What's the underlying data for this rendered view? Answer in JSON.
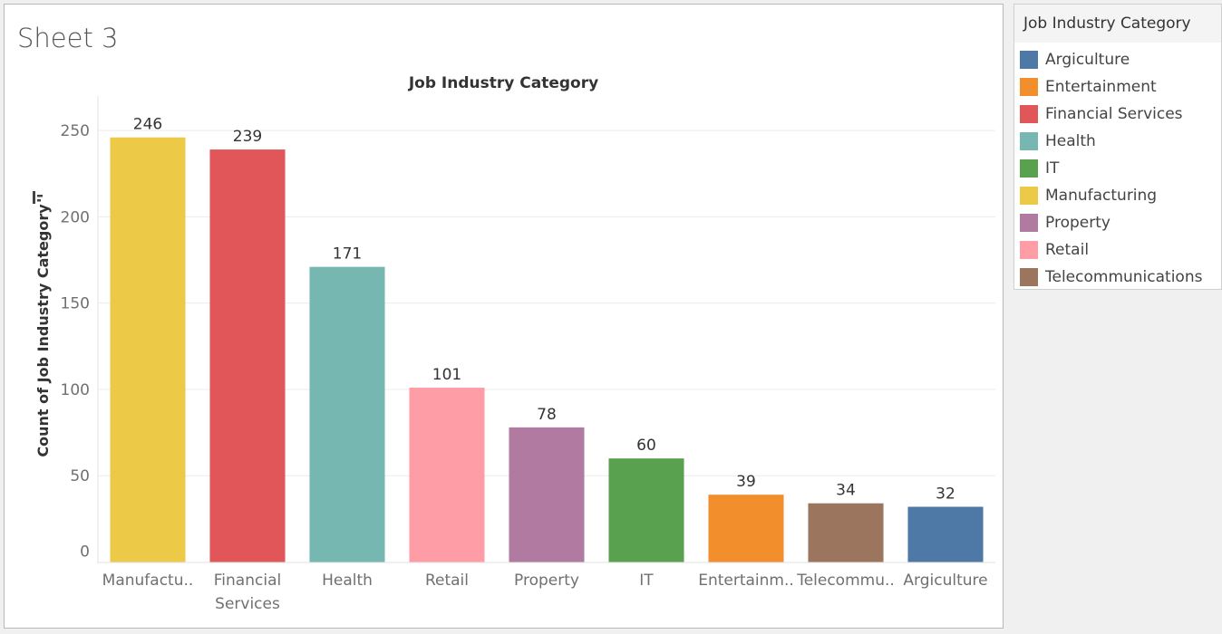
{
  "sheet": {
    "title": "Sheet 3"
  },
  "legend": {
    "title": "Job Industry Category",
    "items": [
      {
        "label": "Argiculture",
        "color": "#4e79a7"
      },
      {
        "label": "Entertainment",
        "color": "#f28e2b"
      },
      {
        "label": "Financial Services",
        "color": "#e15759"
      },
      {
        "label": "Health",
        "color": "#76b7b2"
      },
      {
        "label": "IT",
        "color": "#59a14f"
      },
      {
        "label": "Manufacturing",
        "color": "#edc948"
      },
      {
        "label": "Property",
        "color": "#b07aa1"
      },
      {
        "label": "Retail",
        "color": "#ff9da7"
      },
      {
        "label": "Telecommunications",
        "color": "#9c755f"
      }
    ]
  },
  "chart_data": {
    "type": "bar",
    "title": "Job Industry Category",
    "xlabel": "",
    "ylabel": "Count of Job Industry Category",
    "ylim": [
      0,
      270
    ],
    "yticks": [
      0,
      50,
      100,
      150,
      200,
      250
    ],
    "grid": true,
    "legend_position": "right",
    "categories": [
      "Manufactu..",
      "Financial Services",
      "Health",
      "Retail",
      "Property",
      "IT",
      "Entertainm..",
      "Telecommu..",
      "Argiculture"
    ],
    "values": [
      246,
      239,
      171,
      101,
      78,
      60,
      39,
      34,
      32
    ],
    "colors": [
      "#edc948",
      "#e15759",
      "#76b7b2",
      "#ff9da7",
      "#b07aa1",
      "#59a14f",
      "#f28e2b",
      "#9c755f",
      "#4e79a7"
    ]
  }
}
